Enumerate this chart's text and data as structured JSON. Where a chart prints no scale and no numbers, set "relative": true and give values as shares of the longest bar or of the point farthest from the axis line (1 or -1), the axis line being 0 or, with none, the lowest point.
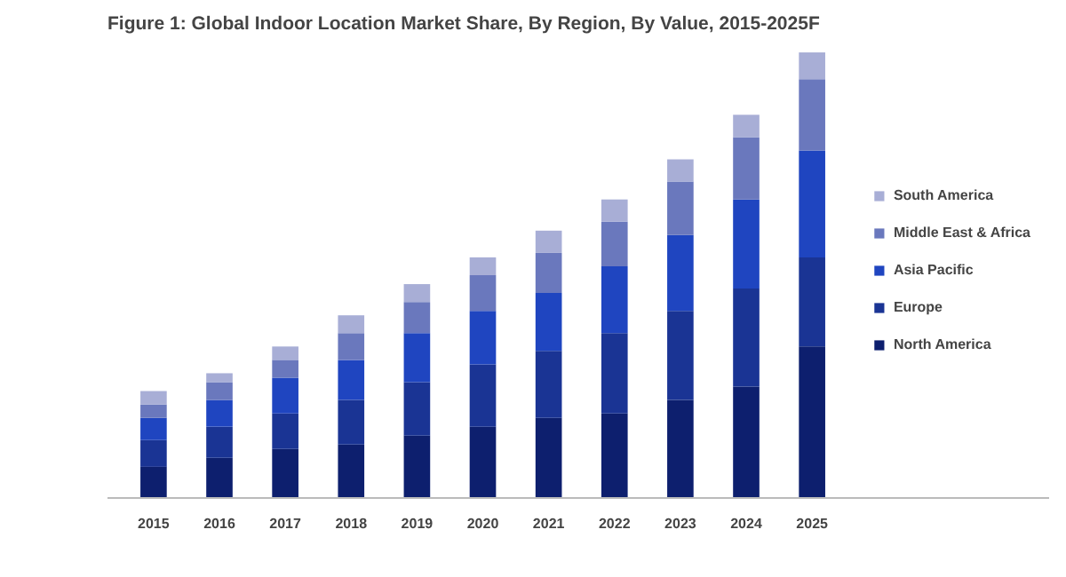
{
  "chart_data": {
    "type": "bar",
    "title": "Figure 1: Global Indoor Location Market Share, By Region, By Value, 2015-2025F",
    "categories": [
      "2015",
      "2016",
      "2017",
      "2018",
      "2019",
      "2020",
      "2021",
      "2022",
      "2023",
      "2024",
      "2025"
    ],
    "stacked": true,
    "relative": true,
    "grid": false,
    "legend": "right",
    "series": [
      {
        "name": "North America",
        "color": "#0d1f6e",
        "values": [
          0.07,
          0.09,
          0.11,
          0.12,
          0.14,
          0.16,
          0.18,
          0.19,
          0.22,
          0.25,
          0.34
        ]
      },
      {
        "name": "Europe",
        "color": "#1a3494",
        "values": [
          0.06,
          0.07,
          0.08,
          0.1,
          0.12,
          0.14,
          0.15,
          0.18,
          0.2,
          0.22,
          0.2
        ]
      },
      {
        "name": "Asia Pacific",
        "color": "#1f45c0",
        "values": [
          0.05,
          0.06,
          0.08,
          0.09,
          0.11,
          0.12,
          0.13,
          0.15,
          0.17,
          0.2,
          0.24
        ]
      },
      {
        "name": "Middle East & Africa",
        "color": "#6a78bd",
        "values": [
          0.03,
          0.04,
          0.04,
          0.06,
          0.07,
          0.08,
          0.09,
          0.1,
          0.12,
          0.14,
          0.16
        ]
      },
      {
        "name": "South America",
        "color": "#a8aed6",
        "values": [
          0.03,
          0.02,
          0.03,
          0.04,
          0.04,
          0.04,
          0.05,
          0.05,
          0.05,
          0.05,
          0.06
        ]
      }
    ]
  }
}
